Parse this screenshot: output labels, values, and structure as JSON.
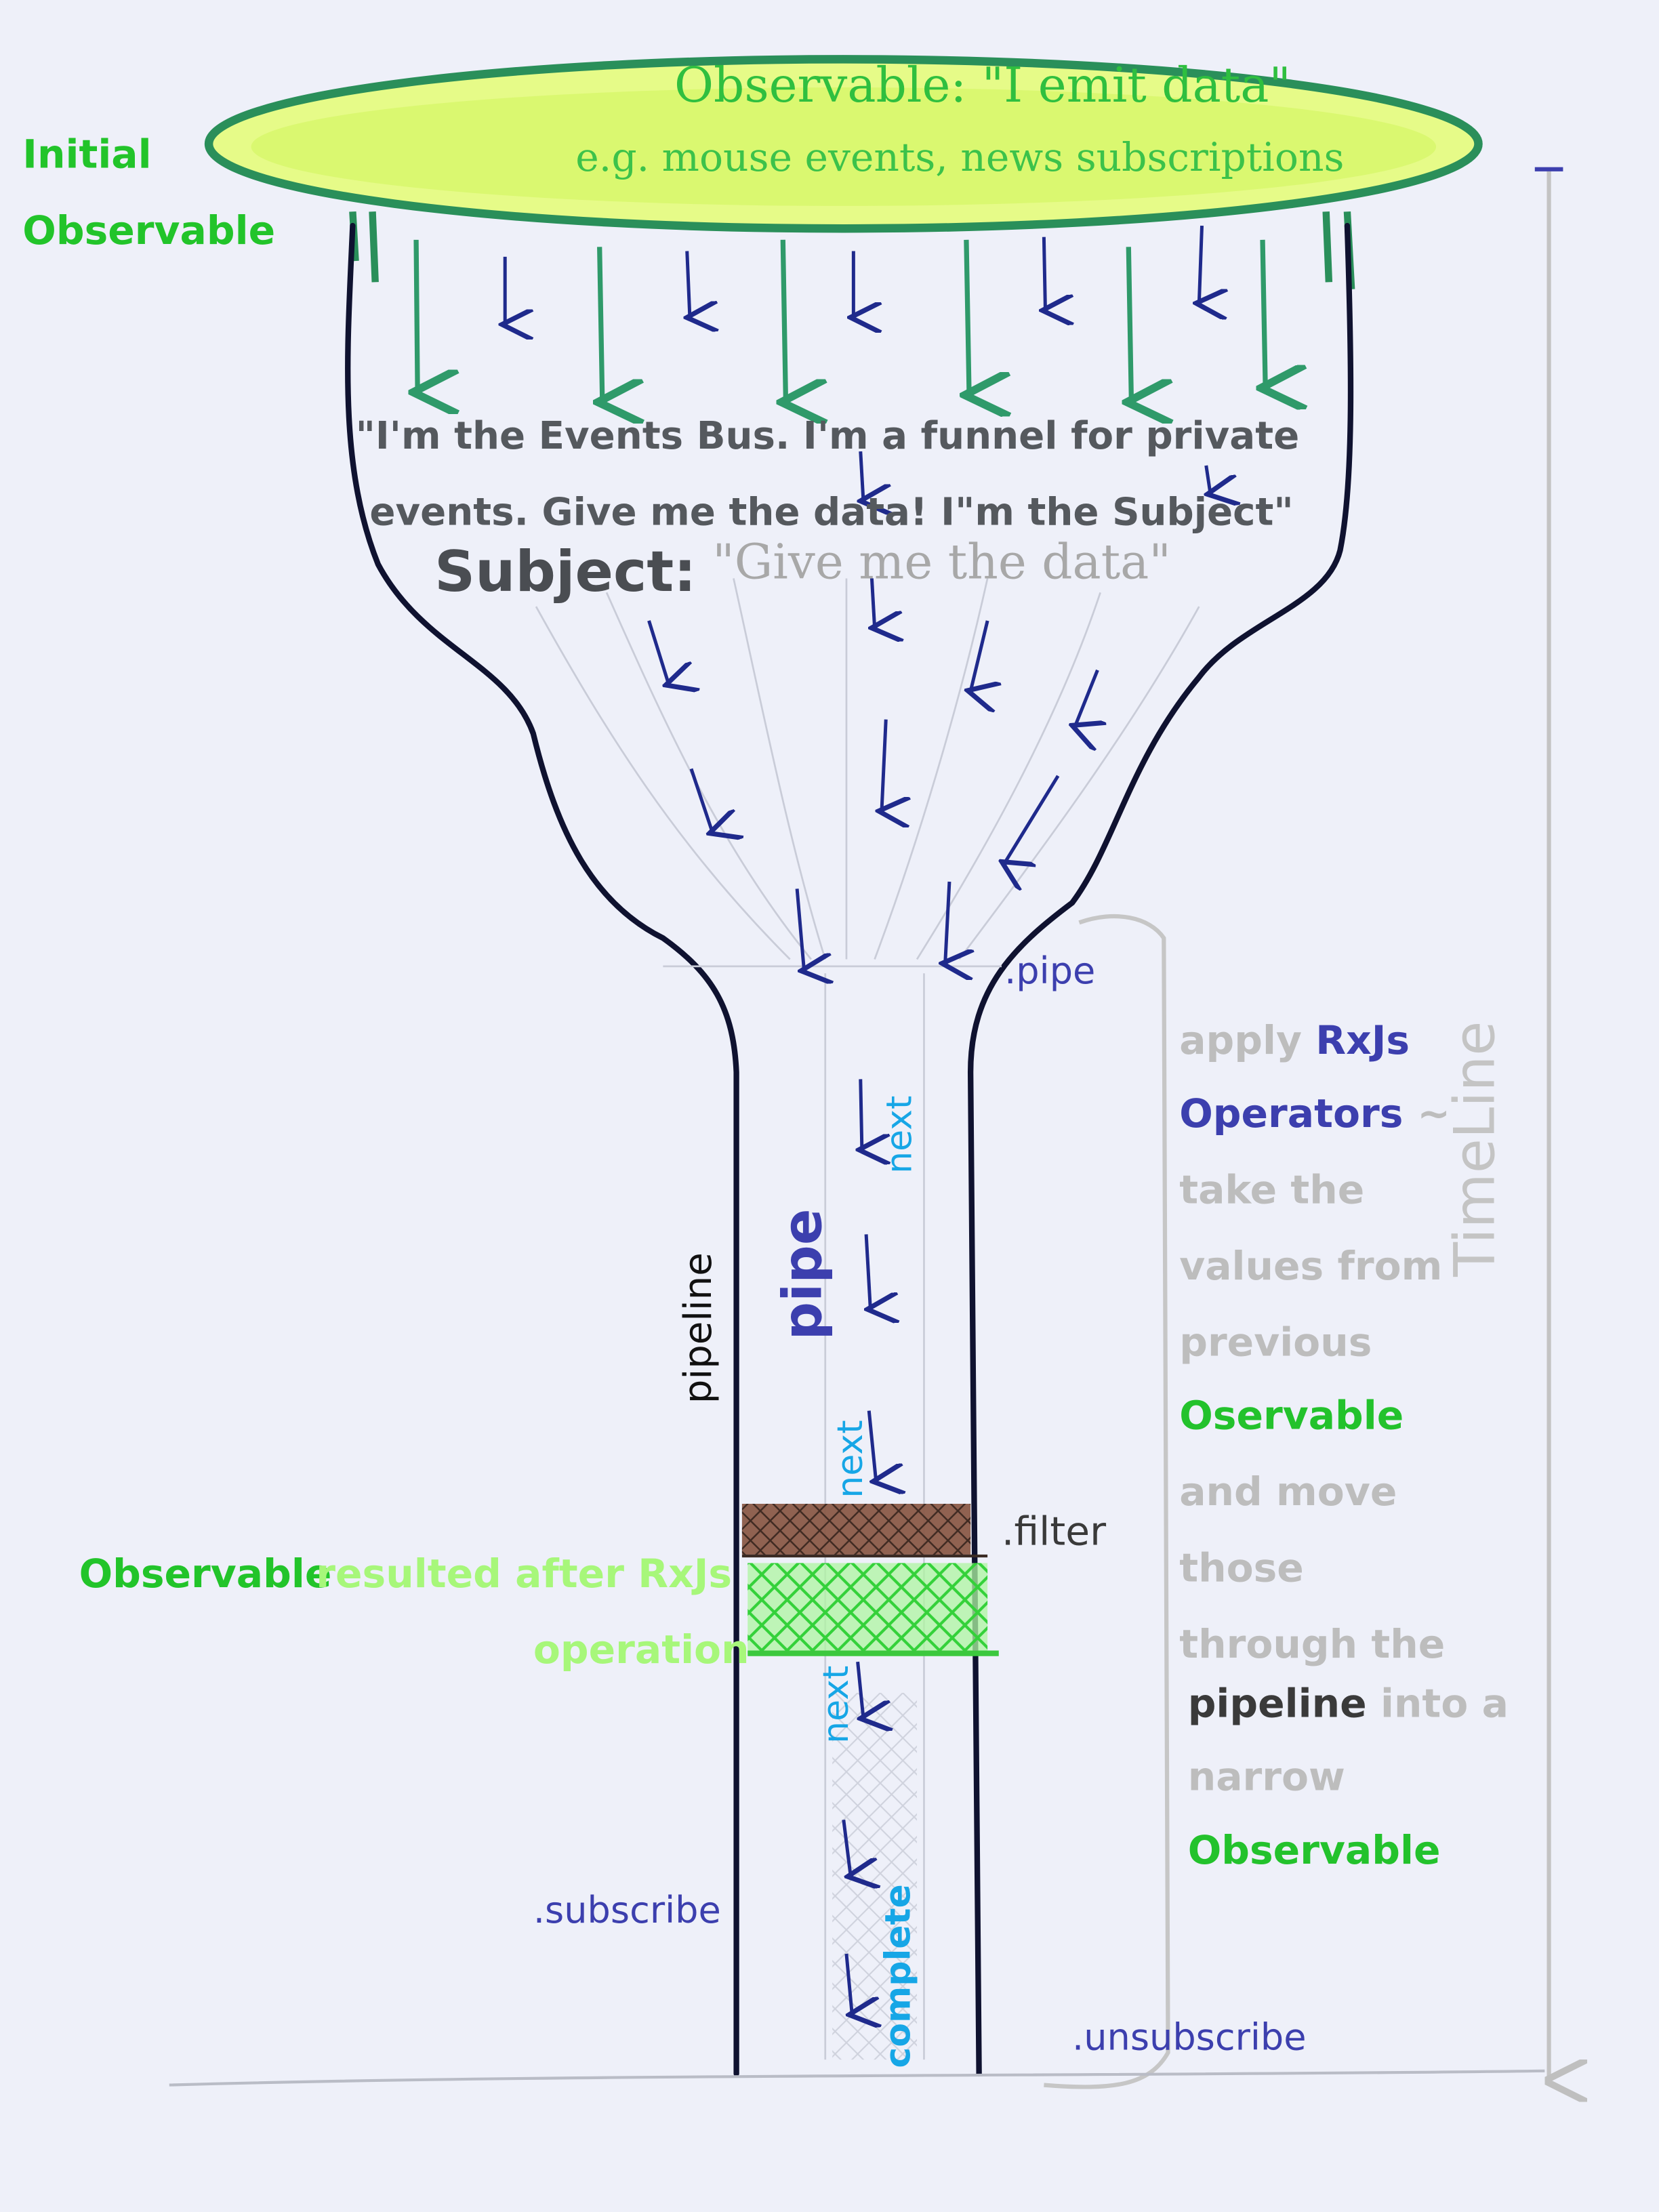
{
  "top": {
    "title": "Observable: \"I emit data\"",
    "subtitle": "e.g. mouse events, news subscriptions",
    "initial_label_line1": "Initial",
    "initial_label_line2": "Observable"
  },
  "funnel": {
    "bus_line1": "\"I'm the Events Bus. I'm a funnel for private",
    "bus_line2": "events. Give me the data! I\"m the Subject\"",
    "subject_word": "Subject:",
    "subject_quote": "\"Give me the data\""
  },
  "stem": {
    "pipe_op": ".pipe",
    "next_1": "next",
    "pipe_big": "pipe",
    "pipeline": "pipeline",
    "next_2": "next",
    "filter_op": ".filter",
    "next_3": "next",
    "subscribe_op": ".subscribe",
    "complete": "complete",
    "unsubscribe_op": ".unsubscribe",
    "result_obs_word": "Observable",
    "result_obs_rest": "resulted after RxJs",
    "result_obs_line2": "operation"
  },
  "side": {
    "l1a": "apply ",
    "l1b": "RxJs",
    "l2": "Operators",
    "l2_tilde": "~",
    "l3": "take the",
    "l4": "values from",
    "l5": "previous",
    "l6": "Oservable",
    "l7": "and move",
    "l8": "those",
    "l9": "through the",
    "l10a": "pipeline",
    "l10b": " into a",
    "l11": "narrow",
    "l12": "Observable",
    "timeline": "TimeLine"
  },
  "colors": {
    "ink_dark": "#0f1230",
    "arrow_navy": "#1f2a8c",
    "lid_green": "#2a8f5a",
    "lid_fill": "#e0fb7c",
    "filter_brown": "#8a5a48",
    "result_green": "#4fe04a"
  }
}
